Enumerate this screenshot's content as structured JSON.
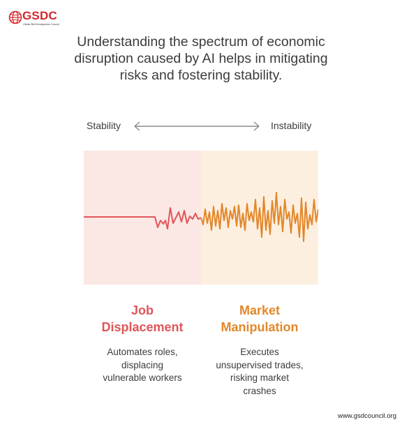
{
  "brand": {
    "name": "GSDC",
    "tagline": "Global Skill Development Council",
    "globe_icon": "globe-icon",
    "color": "#d6262b"
  },
  "headline": {
    "lines": [
      "Understanding the spectrum of economic",
      "disruption caused by AI helps in mitigating",
      "risks and fostering stability."
    ]
  },
  "scale": {
    "left_label": "Stability",
    "right_label": "Instability",
    "arrow_icon": "double-arrow-icon"
  },
  "columns": [
    {
      "title_lines": [
        "Job",
        "Displacement"
      ],
      "description_lines": [
        "Automates roles,",
        "displacing",
        "vulnerable workers"
      ],
      "color": "#e0565a",
      "panel_color": "#fbe7e4"
    },
    {
      "title_lines": [
        "Market",
        "Manipulation"
      ],
      "description_lines": [
        "Executes",
        "unsupervised trades,",
        "risking market",
        "crashes"
      ],
      "color": "#e2872a",
      "panel_color": "#fdefe0"
    }
  ],
  "footer": {
    "url": "www.gsdcouncil.org"
  }
}
